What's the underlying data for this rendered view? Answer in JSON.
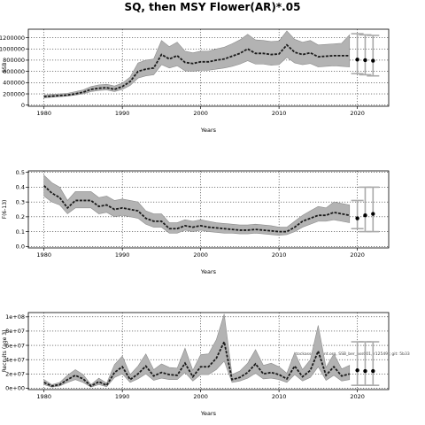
{
  "figure": {
    "title": "SQ, then MSY Flower(AR)*.05",
    "note": "stockassessment.org, SSB_ber_ass001, r12549 ; git: 5b33"
  },
  "chart_data": [
    {
      "type": "line",
      "title": "",
      "xlabel": "Years",
      "ylabel": "SSB",
      "xlim": [
        1978,
        2024
      ],
      "ylim": [
        -20000,
        1350000
      ],
      "xticks": [
        1980,
        1990,
        2000,
        2010,
        2020
      ],
      "yticks": [
        0,
        200000,
        400000,
        600000,
        800000,
        1000000,
        1200000
      ],
      "ytick_labels": [
        "0",
        "200000",
        "400000",
        "600000",
        "800000",
        "1000000",
        "1200000"
      ],
      "grid": true,
      "x": [
        1980,
        1981,
        1982,
        1983,
        1984,
        1985,
        1986,
        1987,
        1988,
        1989,
        1990,
        1991,
        1992,
        1993,
        1994,
        1995,
        1996,
        1997,
        1998,
        1999,
        2000,
        2001,
        2002,
        2003,
        2004,
        2005,
        2006,
        2007,
        2008,
        2009,
        2010,
        2011,
        2012,
        2013,
        2014,
        2015,
        2016,
        2017,
        2018,
        2019
      ],
      "estimate": [
        150000,
        160000,
        170000,
        180000,
        200000,
        230000,
        280000,
        300000,
        310000,
        280000,
        330000,
        420000,
        600000,
        640000,
        660000,
        900000,
        820000,
        880000,
        760000,
        740000,
        770000,
        770000,
        800000,
        820000,
        870000,
        920000,
        1000000,
        920000,
        920000,
        900000,
        910000,
        1070000,
        940000,
        900000,
        930000,
        860000,
        870000,
        880000,
        880000,
        880000
      ],
      "lower": [
        130000,
        140000,
        150000,
        160000,
        180000,
        200000,
        240000,
        260000,
        270000,
        240000,
        280000,
        350000,
        480000,
        520000,
        540000,
        720000,
        660000,
        700000,
        610000,
        600000,
        620000,
        620000,
        640000,
        660000,
        690000,
        730000,
        790000,
        730000,
        730000,
        710000,
        720000,
        850000,
        750000,
        720000,
        740000,
        680000,
        690000,
        700000,
        690000,
        680000
      ],
      "upper": [
        180000,
        190000,
        200000,
        210000,
        240000,
        270000,
        330000,
        360000,
        370000,
        340000,
        390000,
        500000,
        750000,
        800000,
        820000,
        1150000,
        1040000,
        1120000,
        960000,
        930000,
        960000,
        960000,
        1000000,
        1030000,
        1090000,
        1160000,
        1260000,
        1160000,
        1150000,
        1130000,
        1140000,
        1320000,
        1170000,
        1120000,
        1150000,
        1070000,
        1080000,
        1090000,
        1100000,
        1250000
      ],
      "forecast": {
        "x": [
          2020,
          2021,
          2022
        ],
        "median": [
          810000,
          800000,
          790000
        ],
        "lower": [
          560000,
          540000,
          520000
        ],
        "upper": [
          1270000,
          1250000,
          1240000
        ]
      }
    },
    {
      "type": "line",
      "title": "",
      "xlabel": "Years",
      "ylabel": "F(6-13)",
      "xlim": [
        1978,
        2024
      ],
      "ylim": [
        -0.01,
        0.51
      ],
      "xticks": [
        1980,
        1990,
        2000,
        2010,
        2020
      ],
      "yticks": [
        0.0,
        0.1,
        0.2,
        0.3,
        0.4,
        0.5
      ],
      "ytick_labels": [
        "0.0",
        "0.1",
        "0.2",
        "0.3",
        "0.4",
        "0.5"
      ],
      "grid": true,
      "x": [
        1980,
        1981,
        1982,
        1983,
        1984,
        1985,
        1986,
        1987,
        1988,
        1989,
        1990,
        1991,
        1992,
        1993,
        1994,
        1995,
        1996,
        1997,
        1998,
        1999,
        2000,
        2001,
        2002,
        2003,
        2004,
        2005,
        2006,
        2007,
        2008,
        2009,
        2010,
        2011,
        2012,
        2013,
        2014,
        2015,
        2016,
        2017,
        2018,
        2019
      ],
      "estimate": [
        0.41,
        0.36,
        0.33,
        0.26,
        0.31,
        0.31,
        0.31,
        0.27,
        0.28,
        0.25,
        0.26,
        0.25,
        0.24,
        0.19,
        0.17,
        0.17,
        0.12,
        0.12,
        0.14,
        0.13,
        0.14,
        0.13,
        0.125,
        0.12,
        0.115,
        0.11,
        0.11,
        0.115,
        0.11,
        0.105,
        0.1,
        0.1,
        0.13,
        0.17,
        0.19,
        0.21,
        0.21,
        0.23,
        0.22,
        0.21
      ],
      "lower": [
        0.34,
        0.3,
        0.28,
        0.22,
        0.26,
        0.26,
        0.26,
        0.22,
        0.23,
        0.2,
        0.21,
        0.2,
        0.19,
        0.15,
        0.13,
        0.13,
        0.09,
        0.09,
        0.11,
        0.1,
        0.11,
        0.1,
        0.095,
        0.09,
        0.09,
        0.085,
        0.085,
        0.09,
        0.085,
        0.08,
        0.075,
        0.08,
        0.1,
        0.13,
        0.15,
        0.17,
        0.17,
        0.18,
        0.17,
        0.16
      ],
      "upper": [
        0.48,
        0.43,
        0.4,
        0.31,
        0.37,
        0.37,
        0.37,
        0.33,
        0.34,
        0.31,
        0.32,
        0.31,
        0.3,
        0.24,
        0.22,
        0.22,
        0.16,
        0.16,
        0.18,
        0.17,
        0.18,
        0.17,
        0.16,
        0.155,
        0.15,
        0.145,
        0.145,
        0.15,
        0.145,
        0.14,
        0.13,
        0.13,
        0.17,
        0.21,
        0.24,
        0.27,
        0.26,
        0.3,
        0.29,
        0.28
      ],
      "forecast": {
        "x": [
          2020,
          2021,
          2022
        ],
        "median": [
          0.19,
          0.21,
          0.22
        ],
        "lower": [
          0.12,
          0.1,
          0.1
        ],
        "upper": [
          0.31,
          0.4,
          0.4
        ]
      }
    },
    {
      "type": "line",
      "title": "",
      "xlabel": "Years",
      "ylabel": "Recruits (age 3)",
      "xlim": [
        1978,
        2024
      ],
      "ylim": [
        -2000000,
        106000000
      ],
      "xticks": [
        1980,
        1990,
        2000,
        2010,
        2020
      ],
      "yticks": [
        0,
        20000000,
        40000000,
        60000000,
        80000000,
        100000000
      ],
      "ytick_labels": [
        "0e+00",
        "2e+07",
        "4e+07",
        "6e+07",
        "8e+07",
        "1e+08"
      ],
      "grid": true,
      "x": [
        1980,
        1981,
        1982,
        1983,
        1984,
        1985,
        1986,
        1987,
        1988,
        1989,
        1990,
        1991,
        1992,
        1993,
        1994,
        1995,
        1996,
        1997,
        1998,
        1999,
        2000,
        2001,
        2002,
        2003,
        2004,
        2005,
        2006,
        2007,
        2008,
        2009,
        2010,
        2011,
        2012,
        2013,
        2014,
        2015,
        2016,
        2017,
        2018,
        2019
      ],
      "estimate": [
        8000000,
        3000000,
        5000000,
        12000000,
        18000000,
        13000000,
        3000000,
        9000000,
        4000000,
        22000000,
        30000000,
        12000000,
        20000000,
        31000000,
        17000000,
        22000000,
        19000000,
        18000000,
        35000000,
        16000000,
        30000000,
        30000000,
        42000000,
        65000000,
        12000000,
        15000000,
        22000000,
        34000000,
        20000000,
        22000000,
        19000000,
        13000000,
        31000000,
        16000000,
        25000000,
        52000000,
        18000000,
        30000000,
        17000000,
        20000000
      ],
      "lower": [
        5000000,
        1500000,
        3000000,
        8000000,
        12000000,
        8000000,
        1500000,
        5000000,
        2000000,
        15000000,
        20000000,
        8000000,
        13000000,
        20000000,
        11000000,
        14000000,
        12000000,
        12000000,
        22000000,
        10000000,
        19000000,
        19000000,
        26000000,
        38000000,
        8000000,
        10000000,
        14000000,
        21000000,
        13000000,
        14000000,
        12000000,
        8000000,
        19000000,
        10000000,
        15000000,
        30000000,
        11000000,
        18000000,
        10000000,
        12000000
      ],
      "upper": [
        12000000,
        5000000,
        8000000,
        18000000,
        26000000,
        19000000,
        5000000,
        14000000,
        7000000,
        33000000,
        45000000,
        19000000,
        31000000,
        48000000,
        26000000,
        34000000,
        29000000,
        28000000,
        56000000,
        25000000,
        47000000,
        48000000,
        68000000,
        104000000,
        19000000,
        24000000,
        35000000,
        54000000,
        32000000,
        35000000,
        30000000,
        21000000,
        50000000,
        26000000,
        40000000,
        88000000,
        29000000,
        48000000,
        27000000,
        32000000
      ],
      "forecast": {
        "x": [
          2020,
          2021,
          2022
        ],
        "median": [
          25000000,
          24000000,
          24000000
        ],
        "lower": [
          4000000,
          4000000,
          4000000
        ],
        "upper": [
          65000000,
          65000000,
          65000000
        ]
      }
    }
  ]
}
